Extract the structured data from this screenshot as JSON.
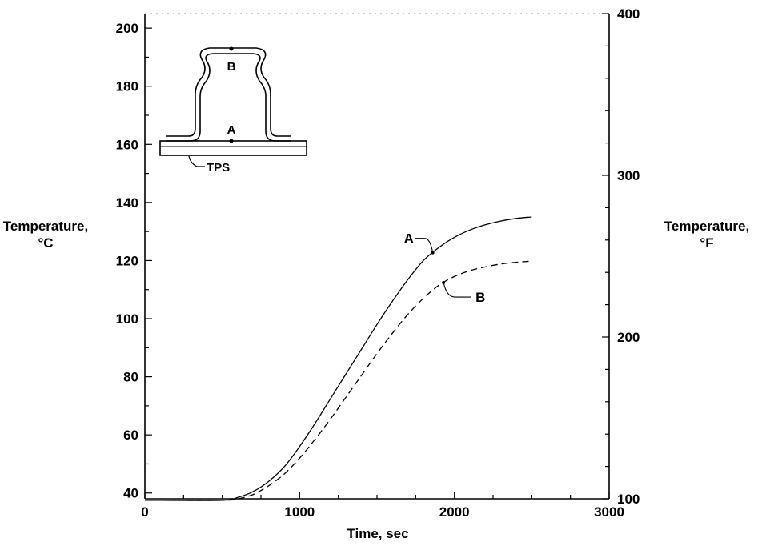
{
  "chart_data": {
    "type": "line",
    "title": "",
    "xlabel": "Time, sec",
    "ylabel_left": [
      "Temperature,",
      "°C"
    ],
    "ylabel_right": [
      "Temperature,",
      "°F"
    ],
    "xlim": [
      0,
      3000
    ],
    "ylim_left": [
      38,
      205
    ],
    "ylim_right": [
      100,
      400
    ],
    "x_ticks": [
      0,
      1000,
      2000,
      3000
    ],
    "y_ticks_left": [
      40,
      60,
      80,
      100,
      120,
      140,
      160,
      180,
      200
    ],
    "y_ticks_right": [
      100,
      200,
      300,
      400
    ],
    "grid": false,
    "legend": "none",
    "series": [
      {
        "name": "A",
        "line_style": "solid",
        "x": [
          0,
          500,
          600,
          700,
          800,
          900,
          1000,
          1100,
          1200,
          1300,
          1400,
          1500,
          1600,
          1700,
          1800,
          1900,
          2000,
          2100,
          2200,
          2300,
          2400,
          2500
        ],
        "y": [
          37.5,
          37.5,
          38.5,
          40.5,
          44,
          49,
          56,
          64,
          72.5,
          81,
          89.5,
          98,
          106,
          113.5,
          120,
          124.5,
          128,
          130.5,
          132.3,
          133.6,
          134.5,
          135
        ]
      },
      {
        "name": "B",
        "line_style": "dashed",
        "x": [
          0,
          500,
          600,
          700,
          800,
          900,
          1000,
          1100,
          1200,
          1300,
          1400,
          1500,
          1600,
          1700,
          1800,
          1900,
          2000,
          2100,
          2200,
          2300,
          2400,
          2500
        ],
        "y": [
          37.5,
          37.5,
          38,
          39.5,
          42.5,
          46.5,
          52,
          58.5,
          65.5,
          73,
          80.5,
          88,
          95,
          101.5,
          107,
          111.5,
          114.5,
          116.5,
          117.8,
          118.8,
          119.4,
          119.8
        ]
      }
    ],
    "curve_labels": [
      {
        "text": "A",
        "series": "A",
        "at_x": 1860
      },
      {
        "text": "B",
        "series": "B",
        "at_x": 1930
      }
    ],
    "inset": {
      "labels": [
        "B",
        "A",
        "TPS"
      ]
    }
  }
}
